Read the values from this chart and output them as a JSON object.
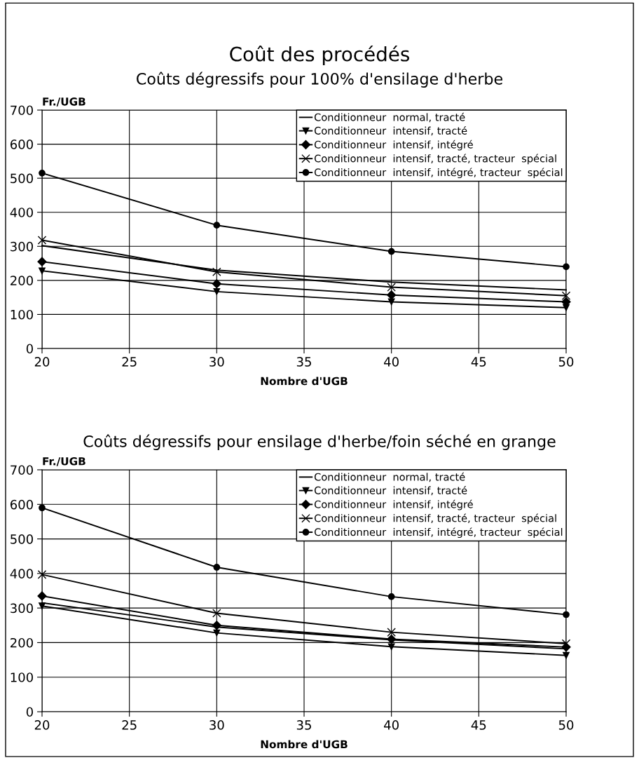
{
  "chart_data": [
    {
      "type": "line",
      "title": "Coût des procédés",
      "subtitle": "Coûts dégressifs pour 100% d'ensilage d'herbe",
      "xlabel": "Nombre d'UGB",
      "ylabel": "Fr./UGB",
      "x": [
        20,
        30,
        40,
        50
      ],
      "series": [
        {
          "name": "Conditionneur  normal, tracté",
          "color": "#000000",
          "marker": "none",
          "values": [
            302,
            230,
            195,
            172
          ]
        },
        {
          "name": "Conditionneur  intensif, tracté",
          "color": "#000000",
          "marker": "triangle",
          "values": [
            228,
            167,
            137,
            120
          ]
        },
        {
          "name": "Conditionneur  intensif, intégré",
          "color": "#000000",
          "marker": "diamond",
          "values": [
            255,
            190,
            157,
            137
          ]
        },
        {
          "name": "Conditionneur  intensif, tracté, tracteur  spécial",
          "color": "#000000",
          "marker": "cross",
          "values": [
            318,
            225,
            180,
            155
          ]
        },
        {
          "name": "Conditionneur  intensif, intégré, tracteur  spécial",
          "color": "#000000",
          "marker": "circle",
          "values": [
            515,
            362,
            285,
            240
          ]
        }
      ],
      "xlim": [
        20,
        50
      ],
      "xticks": [
        20,
        25,
        30,
        35,
        40,
        45,
        50
      ],
      "ylim": [
        0,
        700
      ],
      "yticks": [
        0,
        100,
        200,
        300,
        400,
        500,
        600,
        700
      ],
      "grid": true,
      "legend": "top right",
      "line_style": "solid"
    },
    {
      "type": "line",
      "title": "Coûts dégressifs pour ensilage d'herbe/foin séché en grange",
      "xlabel": "Nombre d'UGB",
      "ylabel": "Fr./UGB",
      "x": [
        20,
        30,
        40,
        50
      ],
      "series": [
        {
          "name": "Conditionneur  normal, tracté",
          "color": "#000000",
          "marker": "none",
          "values": [
            315,
            245,
            208,
            182
          ]
        },
        {
          "name": "Conditionneur  intensif, tracté",
          "color": "#000000",
          "marker": "triangle",
          "values": [
            306,
            228,
            188,
            163
          ]
        },
        {
          "name": "Conditionneur  intensif, intégré",
          "color": "#000000",
          "marker": "diamond",
          "values": [
            335,
            250,
            210,
            187
          ]
        },
        {
          "name": "Conditionneur  intensif, tracté, tracteur  spécial",
          "color": "#000000",
          "marker": "cross",
          "values": [
            397,
            285,
            230,
            197
          ]
        },
        {
          "name": "Conditionneur  intensif, intégré, tracteur  spécial",
          "color": "#000000",
          "marker": "circle",
          "values": [
            590,
            418,
            333,
            281
          ]
        }
      ],
      "xlim": [
        20,
        50
      ],
      "xticks": [
        20,
        25,
        30,
        35,
        40,
        45,
        50
      ],
      "ylim": [
        0,
        700
      ],
      "yticks": [
        0,
        100,
        200,
        300,
        400,
        500,
        600,
        700
      ],
      "grid": true,
      "legend": "top right",
      "line_style": "solid"
    }
  ]
}
